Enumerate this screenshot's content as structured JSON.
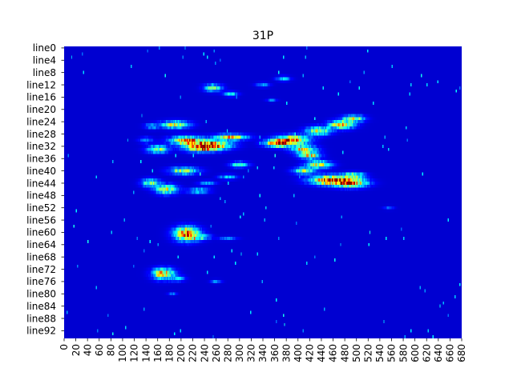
{
  "chart_data": {
    "type": "heatmap",
    "title": "31P",
    "xlabel": "",
    "ylabel": "",
    "colormap": "jet",
    "background_color": "#00008b",
    "x_range": [
      0,
      680
    ],
    "y_range": [
      0,
      95
    ],
    "grid": false,
    "legend": "none",
    "y_tick_labels": [
      "line0",
      "line4",
      "line8",
      "line12",
      "line16",
      "line20",
      "line24",
      "line28",
      "line32",
      "line36",
      "line40",
      "line44",
      "line48",
      "line52",
      "line56",
      "line60",
      "line64",
      "line68",
      "line72",
      "line76",
      "line80",
      "line84",
      "line88",
      "line92"
    ],
    "y_tick_rows": [
      0,
      4,
      8,
      12,
      16,
      20,
      24,
      28,
      32,
      36,
      40,
      44,
      48,
      52,
      56,
      60,
      64,
      68,
      72,
      76,
      80,
      84,
      88,
      92
    ],
    "x_tick_values": [
      0,
      20,
      40,
      60,
      80,
      100,
      120,
      140,
      160,
      180,
      200,
      220,
      240,
      260,
      280,
      300,
      320,
      340,
      360,
      380,
      400,
      420,
      440,
      460,
      480,
      500,
      520,
      540,
      560,
      580,
      600,
      620,
      640,
      660,
      680
    ],
    "hotspots": [
      {
        "x": 190,
        "row": 25,
        "sx": 16,
        "sy": 0.8,
        "peak": 0.62
      },
      {
        "x": 150,
        "row": 25.5,
        "sx": 8,
        "sy": 0.6,
        "peak": 0.28
      },
      {
        "x": 140,
        "row": 30,
        "sx": 8,
        "sy": 0.6,
        "peak": 0.25
      },
      {
        "x": 210,
        "row": 30.2,
        "sx": 18,
        "sy": 0.9,
        "peak": 0.86
      },
      {
        "x": 255,
        "row": 31.5,
        "sx": 20,
        "sy": 1.0,
        "peak": 0.82
      },
      {
        "x": 235,
        "row": 32.5,
        "sx": 18,
        "sy": 0.9,
        "peak": 0.78
      },
      {
        "x": 285,
        "row": 29,
        "sx": 18,
        "sy": 0.6,
        "peak": 0.72
      },
      {
        "x": 160,
        "row": 33,
        "sx": 12,
        "sy": 0.8,
        "peak": 0.55
      },
      {
        "x": 205,
        "row": 40,
        "sx": 16,
        "sy": 0.8,
        "peak": 0.52
      },
      {
        "x": 300,
        "row": 38,
        "sx": 10,
        "sy": 0.6,
        "peak": 0.45
      },
      {
        "x": 148,
        "row": 44,
        "sx": 10,
        "sy": 0.9,
        "peak": 0.5
      },
      {
        "x": 175,
        "row": 46,
        "sx": 12,
        "sy": 1.0,
        "peak": 0.62
      },
      {
        "x": 230,
        "row": 46.5,
        "sx": 12,
        "sy": 0.6,
        "peak": 0.35
      },
      {
        "x": 245,
        "row": 44,
        "sx": 10,
        "sy": 0.5,
        "peak": 0.22
      },
      {
        "x": 280,
        "row": 42,
        "sx": 10,
        "sy": 0.5,
        "peak": 0.3
      },
      {
        "x": 255,
        "row": 13,
        "sx": 10,
        "sy": 0.8,
        "peak": 0.48
      },
      {
        "x": 285,
        "row": 15,
        "sx": 8,
        "sy": 0.5,
        "peak": 0.35
      },
      {
        "x": 390,
        "row": 30,
        "sx": 18,
        "sy": 1.0,
        "peak": 0.86
      },
      {
        "x": 365,
        "row": 31,
        "sx": 14,
        "sy": 0.8,
        "peak": 0.8
      },
      {
        "x": 410,
        "row": 33,
        "sx": 14,
        "sy": 0.8,
        "peak": 0.7
      },
      {
        "x": 420,
        "row": 35,
        "sx": 12,
        "sy": 0.7,
        "peak": 0.62
      },
      {
        "x": 435,
        "row": 38,
        "sx": 14,
        "sy": 0.8,
        "peak": 0.66
      },
      {
        "x": 410,
        "row": 40,
        "sx": 12,
        "sy": 0.7,
        "peak": 0.5
      },
      {
        "x": 435,
        "row": 27,
        "sx": 14,
        "sy": 0.9,
        "peak": 0.6
      },
      {
        "x": 475,
        "row": 25,
        "sx": 14,
        "sy": 0.9,
        "peak": 0.72
      },
      {
        "x": 495,
        "row": 23,
        "sx": 12,
        "sy": 0.7,
        "peak": 0.6
      },
      {
        "x": 455,
        "row": 43,
        "sx": 22,
        "sy": 1.0,
        "peak": 0.92
      },
      {
        "x": 490,
        "row": 44,
        "sx": 18,
        "sy": 0.9,
        "peak": 0.9
      },
      {
        "x": 495,
        "row": 41.5,
        "sx": 12,
        "sy": 0.6,
        "peak": 0.62
      },
      {
        "x": 375,
        "row": 10,
        "sx": 8,
        "sy": 0.5,
        "peak": 0.3
      },
      {
        "x": 340,
        "row": 12,
        "sx": 8,
        "sy": 0.5,
        "peak": 0.22
      },
      {
        "x": 355,
        "row": 17,
        "sx": 6,
        "sy": 0.4,
        "peak": 0.18
      },
      {
        "x": 555,
        "row": 52,
        "sx": 6,
        "sy": 0.4,
        "peak": 0.15
      },
      {
        "x": 210,
        "row": 60.5,
        "sx": 14,
        "sy": 1.5,
        "peak": 0.88
      },
      {
        "x": 235,
        "row": 61.5,
        "sx": 10,
        "sy": 0.6,
        "peak": 0.4
      },
      {
        "x": 280,
        "row": 62,
        "sx": 10,
        "sy": 0.4,
        "peak": 0.2
      },
      {
        "x": 170,
        "row": 73.5,
        "sx": 12,
        "sy": 1.2,
        "peak": 0.76
      },
      {
        "x": 195,
        "row": 75,
        "sx": 8,
        "sy": 0.6,
        "peak": 0.3
      },
      {
        "x": 260,
        "row": 76,
        "sx": 6,
        "sy": 0.4,
        "peak": 0.22
      },
      {
        "x": 185,
        "row": 80,
        "sx": 5,
        "sy": 0.4,
        "peak": 0.18
      }
    ]
  }
}
